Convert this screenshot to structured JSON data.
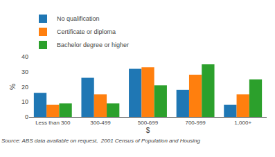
{
  "chart_data": {
    "type": "bar",
    "categories": [
      "Less than 300",
      "300-499",
      "500-699",
      "700-999",
      "1,000+"
    ],
    "series": [
      {
        "name": "No qualification",
        "values": [
          16,
          26,
          32,
          18,
          8
        ]
      },
      {
        "name": "Certificate or diploma",
        "values": [
          8,
          15,
          33,
          28,
          15
        ]
      },
      {
        "name": "Bachelor degree or higher",
        "values": [
          9,
          9,
          21,
          35,
          25
        ]
      }
    ],
    "xlabel": "$",
    "ylabel": "%",
    "ylim": [
      0,
      40
    ],
    "yticks": [
      0,
      10,
      20,
      30,
      40
    ],
    "grid": false,
    "legend": "upper left",
    "annotations": [
      "Source: ABS data available on request,  2001 Census of Population and Housing"
    ]
  }
}
